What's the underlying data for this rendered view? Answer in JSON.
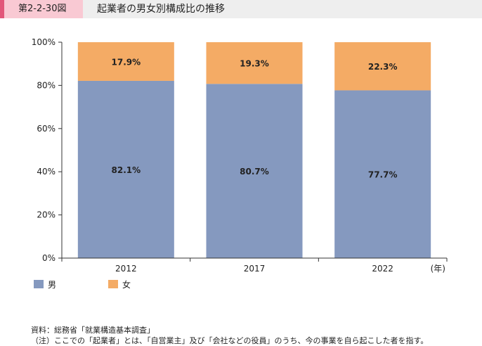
{
  "figure": {
    "number": "第2-2-30図",
    "title": "起業者の男女別構成比の推移"
  },
  "chart_data": {
    "type": "bar",
    "stacked": true,
    "categories": [
      "2012",
      "2017",
      "2022"
    ],
    "series": [
      {
        "name": "男",
        "values": [
          82.1,
          80.7,
          77.7
        ],
        "labels": [
          "82.1%",
          "80.7%",
          "77.7%"
        ],
        "color": "#8599bf"
      },
      {
        "name": "女",
        "values": [
          17.9,
          19.3,
          22.3
        ],
        "labels": [
          "17.9%",
          "19.3%",
          "22.3%"
        ],
        "color": "#f4ab65"
      }
    ],
    "ylim": [
      0,
      100
    ],
    "yticks": [
      "0%",
      "20%",
      "40%",
      "60%",
      "80%",
      "100%"
    ],
    "x_unit": "(年)",
    "grid": false,
    "legend_position": "bottom-left"
  },
  "notes": {
    "source": "資料：総務省「就業構造基本調査」",
    "note": "（注）ここでの「起業者」とは、「自営業主」及び「会社などの役員」のうち、今の事業を自ら起こした者を指す。"
  }
}
